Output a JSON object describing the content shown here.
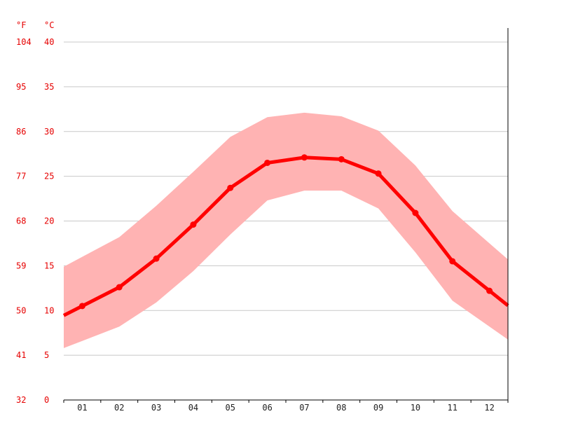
{
  "chart_data": {
    "type": "line",
    "title": "",
    "units": {
      "fahrenheit": "°F",
      "celsius": "°C"
    },
    "categories": [
      "01",
      "02",
      "03",
      "04",
      "05",
      "06",
      "07",
      "08",
      "09",
      "10",
      "11",
      "12"
    ],
    "ylim": [
      0,
      40
    ],
    "y_ticks_celsius": [
      "0",
      "5",
      "10",
      "15",
      "20",
      "25",
      "30",
      "35",
      "40"
    ],
    "y_ticks_fahrenheit": [
      "32",
      "41",
      "50",
      "59",
      "68",
      "77",
      "86",
      "95",
      "104"
    ],
    "grid": true,
    "series": [
      {
        "values": [
          10.5,
          12.6,
          15.8,
          19.6,
          23.7,
          26.5,
          27.1,
          26.9,
          25.3,
          20.9,
          15.5,
          12.2
        ]
      }
    ],
    "band": {
      "max": [
        16.0,
        18.2,
        21.7,
        25.5,
        29.4,
        31.6,
        32.1,
        31.7,
        30.1,
        26.2,
        21.1,
        17.5
      ],
      "min": [
        6.6,
        8.2,
        10.9,
        14.4,
        18.5,
        22.3,
        23.4,
        23.4,
        21.4,
        16.5,
        11.1,
        8.2
      ]
    },
    "colors": {
      "line": "#ff0000",
      "band": "#ffb3b3",
      "tick_label": "#e60000",
      "grid": "#c8c8c8"
    }
  }
}
